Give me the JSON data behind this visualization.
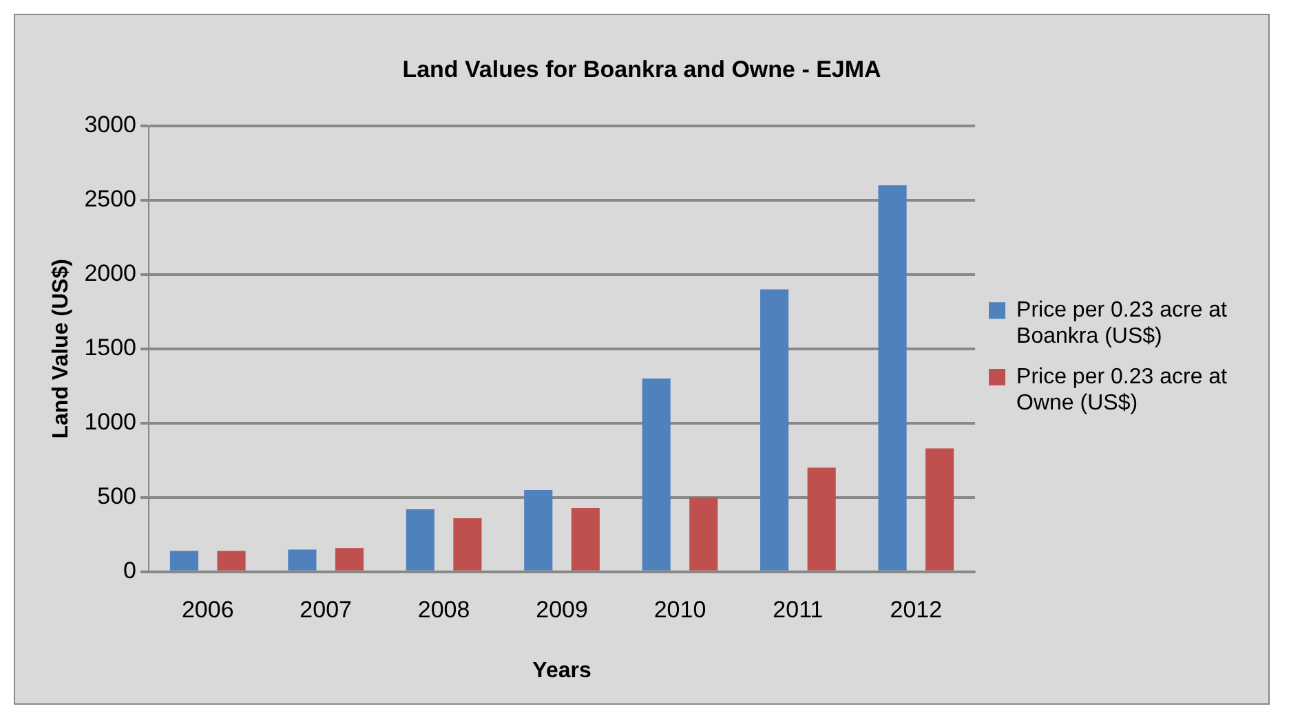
{
  "chart_data": {
    "type": "bar",
    "title": "Land Values for Boankra and Owne - EJMA",
    "xlabel": "Years",
    "ylabel": "Land Value (US$)",
    "categories": [
      "2006",
      "2007",
      "2008",
      "2009",
      "2010",
      "2011",
      "2012"
    ],
    "series": [
      {
        "name": "Price per 0.23 acre at Boankra (US$)",
        "color": "#4f81bd",
        "values": [
          140,
          150,
          420,
          550,
          1300,
          1900,
          2600
        ]
      },
      {
        "name": "Price per 0.23 acre at Owne (US$)",
        "color": "#c0504d",
        "values": [
          140,
          160,
          360,
          430,
          500,
          700,
          830
        ]
      }
    ],
    "ylim": [
      0,
      3000
    ],
    "yticks": [
      0,
      500,
      1000,
      1500,
      2000,
      2500,
      3000
    ],
    "grid": "y",
    "legend": "right"
  }
}
